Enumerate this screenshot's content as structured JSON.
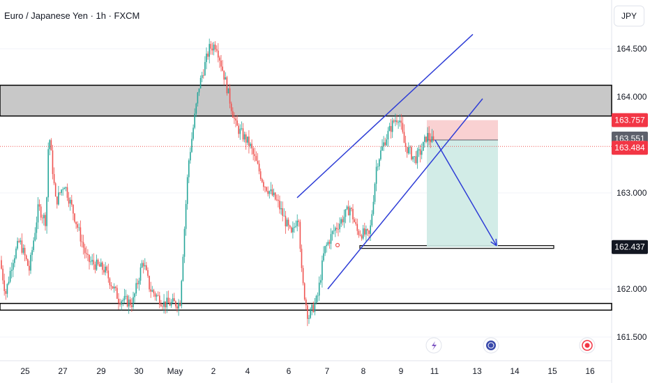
{
  "header": {
    "title": "Euro / Japanese Yen · 1h · FXCM",
    "currency_button": "JPY"
  },
  "colors": {
    "up": "#26a69a",
    "down": "#ef5350",
    "drawing": "#2e3dd6",
    "zone": "#c8c8c8",
    "price_line": "#ef5350",
    "tag_red": "#f23645",
    "tag_gray": "#5d606b",
    "tag_dark": "#131722",
    "stop_fill": "#f7c6c7",
    "target_fill": "#cdeae4"
  },
  "chart_data": {
    "type": "candlestick",
    "symbol": "EURJPY",
    "timeframe": "1h",
    "ylim": [
      161.3,
      164.9
    ],
    "x_ticks": [
      {
        "label": "25",
        "date": "2025-04-25"
      },
      {
        "label": "27",
        "date": "2025-04-27"
      },
      {
        "label": "29",
        "date": "2025-04-29"
      },
      {
        "label": "30",
        "date": "2025-04-30"
      },
      {
        "label": "May",
        "date": "2025-05-01"
      },
      {
        "label": "2",
        "date": "2025-05-02"
      },
      {
        "label": "4",
        "date": "2025-05-04"
      },
      {
        "label": "6",
        "date": "2025-05-06"
      },
      {
        "label": "7",
        "date": "2025-05-07"
      },
      {
        "label": "8",
        "date": "2025-05-08"
      },
      {
        "label": "9",
        "date": "2025-05-09"
      },
      {
        "label": "11",
        "date": "2025-05-11"
      },
      {
        "label": "13",
        "date": "2025-05-13"
      },
      {
        "label": "14",
        "date": "2025-05-14"
      },
      {
        "label": "15",
        "date": "2025-05-15"
      },
      {
        "label": "16",
        "date": "2025-05-16"
      }
    ],
    "y_ticks": [
      "164.500",
      "164.000",
      "163.000",
      "162.000",
      "161.500"
    ],
    "price_tags": [
      {
        "label": "163.757",
        "value": 163.757,
        "role": "stop"
      },
      {
        "label": "163.551",
        "value": 163.551,
        "role": "entry"
      },
      {
        "label": "163.484",
        "value": 163.484,
        "role": "last"
      },
      {
        "label": "162.437",
        "value": 162.437,
        "role": "target"
      }
    ],
    "path_points": [
      {
        "t": 0,
        "p": 162.3
      },
      {
        "t": 8,
        "p": 161.95
      },
      {
        "t": 18,
        "p": 162.3
      },
      {
        "t": 28,
        "p": 162.5
      },
      {
        "t": 42,
        "p": 162.2
      },
      {
        "t": 55,
        "p": 162.85
      },
      {
        "t": 66,
        "p": 162.7
      },
      {
        "t": 70,
        "p": 163.65
      },
      {
        "t": 80,
        "p": 162.9
      },
      {
        "t": 92,
        "p": 163.1
      },
      {
        "t": 105,
        "p": 162.8
      },
      {
        "t": 125,
        "p": 162.3
      },
      {
        "t": 150,
        "p": 162.2
      },
      {
        "t": 170,
        "p": 161.9
      },
      {
        "t": 190,
        "p": 161.85
      },
      {
        "t": 205,
        "p": 162.3
      },
      {
        "t": 215,
        "p": 162.0
      },
      {
        "t": 235,
        "p": 161.85
      },
      {
        "t": 258,
        "p": 161.85
      },
      {
        "t": 270,
        "p": 163.3
      },
      {
        "t": 285,
        "p": 164.1
      },
      {
        "t": 300,
        "p": 164.5
      },
      {
        "t": 310,
        "p": 164.55
      },
      {
        "t": 322,
        "p": 164.2
      },
      {
        "t": 338,
        "p": 163.7
      },
      {
        "t": 358,
        "p": 163.5
      },
      {
        "t": 378,
        "p": 163.1
      },
      {
        "t": 398,
        "p": 162.9
      },
      {
        "t": 418,
        "p": 162.55
      },
      {
        "t": 428,
        "p": 162.8
      },
      {
        "t": 433,
        "p": 162.1
      },
      {
        "t": 442,
        "p": 161.7
      },
      {
        "t": 455,
        "p": 161.9
      },
      {
        "t": 465,
        "p": 162.4
      },
      {
        "t": 478,
        "p": 162.6
      },
      {
        "t": 493,
        "p": 162.75
      },
      {
        "t": 502,
        "p": 162.85
      },
      {
        "t": 512,
        "p": 162.6
      },
      {
        "t": 530,
        "p": 162.55
      },
      {
        "t": 540,
        "p": 163.3
      },
      {
        "t": 552,
        "p": 163.55
      },
      {
        "t": 565,
        "p": 163.75
      },
      {
        "t": 572,
        "p": 163.8
      },
      {
        "t": 580,
        "p": 163.5
      },
      {
        "t": 595,
        "p": 163.35
      },
      {
        "t": 605,
        "p": 163.45
      },
      {
        "t": 612,
        "p": 163.6
      },
      {
        "t": 624,
        "p": 163.5
      }
    ],
    "zones": [
      {
        "name": "resistance-zone",
        "from": 163.8,
        "to": 164.12
      },
      {
        "name": "support-band",
        "from": 161.78,
        "to": 161.85
      }
    ],
    "levels": [
      {
        "name": "target-level",
        "value": 162.437
      }
    ],
    "position": {
      "side": "short",
      "entry": 163.551,
      "stop": 163.757,
      "target": 162.437
    },
    "channel_lines": [
      {
        "name": "channel-upper",
        "from": {
          "t": 426,
          "p": 162.95
        },
        "to": {
          "t": 678,
          "p": 164.65
        }
      },
      {
        "name": "channel-lower",
        "from": {
          "t": 470,
          "p": 162.0
        },
        "to": {
          "t": 692,
          "p": 163.98
        }
      }
    ],
    "projection": {
      "from": {
        "t": 624,
        "p": 163.55
      },
      "to": {
        "t": 712,
        "p": 162.45
      }
    }
  }
}
